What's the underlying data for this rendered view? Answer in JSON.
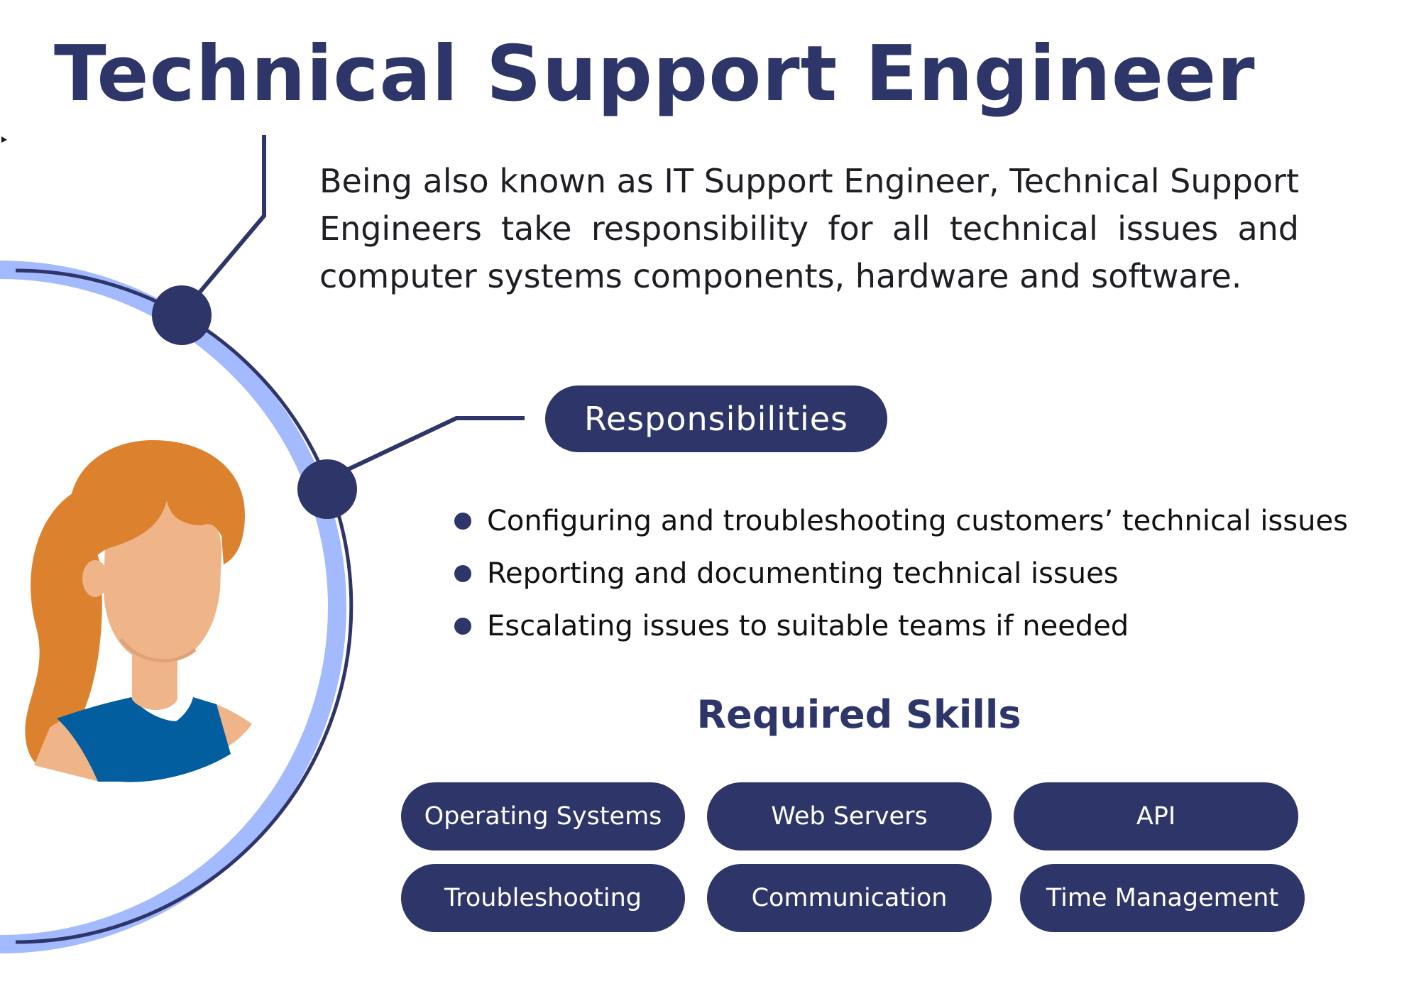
{
  "title": "Technical Support Engineer",
  "description": "Being also known as IT Support Engineer, Technical Support Engineers take responsibility for all technical issues and computer systems components, hardware and software.",
  "responsibilities": {
    "heading": "Responsibilities",
    "items": [
      "Configuring and troubleshooting customers’ technical issues",
      "Reporting and documenting technical issues",
      "Escalating issues to suitable teams if needed"
    ]
  },
  "skills": {
    "heading": "Required Skills",
    "items": [
      "Operating Systems",
      "Web Servers",
      "API",
      "Troubleshooting",
      "Communication",
      "Time Management"
    ]
  },
  "icons": [
    "person-avatar-icon",
    "cursor-icon"
  ],
  "colors": {
    "primary": "#2e3569",
    "accent_ring": "#a3baff",
    "hair": "#dc812e",
    "skin": "#f0b489",
    "shirt": "#035e9f",
    "text": "#1e1e24"
  }
}
